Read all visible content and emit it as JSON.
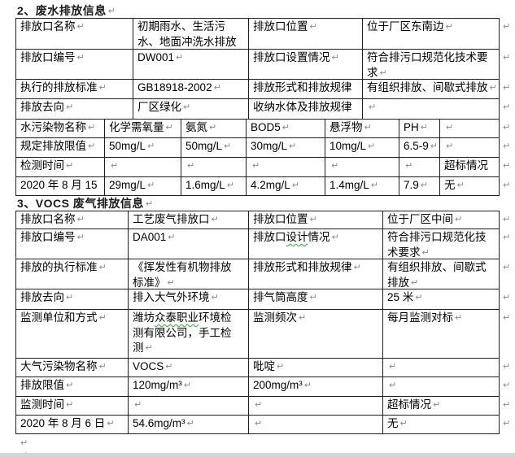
{
  "marks": {
    "cell_end": "↵"
  },
  "colors": {
    "border": "#1f1f1f",
    "squiggle": "#2fae2f",
    "mark": "#8a8a8a",
    "page_bg": "#ffffff"
  },
  "sections": [
    {
      "title": "2、废水排放信息",
      "rows": [
        [
          {
            "text": "排放口名称"
          },
          {
            "text": "初期雨水、生活污水、地面冲洗水排放口"
          },
          {
            "text": "排放口位置"
          },
          {
            "text": "位于厂区东南边"
          }
        ],
        [
          {
            "text": "排放口编号"
          },
          {
            "text": "DW001"
          },
          {
            "text": "排放口设置情况"
          },
          {
            "text": "符合排污口规范化技术要求"
          }
        ],
        [
          {
            "text": "执行的排放标准"
          },
          {
            "text": "GB18918-2002"
          },
          {
            "text": "排放形式和排放规律"
          },
          {
            "text": "有组织排放、间歇式排放"
          }
        ],
        [
          {
            "text": "排放去向"
          },
          {
            "text": "厂区绿化"
          },
          {
            "text": "收纳水体及排放规律"
          },
          {
            "text": ""
          }
        ],
        [
          {
            "text": "水污染物名称"
          },
          {
            "text": "化学需氧量"
          },
          {
            "text": "氨氮"
          },
          {
            "text": "BOD5"
          },
          {
            "text": "悬浮物"
          },
          {
            "text": "PH"
          },
          {
            "text": ""
          }
        ],
        [
          {
            "text": "规定排放限值"
          },
          {
            "text": "50mg/L"
          },
          {
            "text": "50mg/L"
          },
          {
            "text": "30mg/L"
          },
          {
            "text": "10mg/L"
          },
          {
            "text": "6.5-9"
          },
          {
            "text": ""
          }
        ],
        [
          {
            "text": "检测时间"
          },
          {
            "text": ""
          },
          {
            "text": ""
          },
          {
            "text": ""
          },
          {
            "text": ""
          },
          {
            "text": ""
          },
          {
            "text": "超标情况"
          }
        ],
        [
          {
            "text": "2020 年 8 月 15"
          },
          {
            "text": "29mg/L"
          },
          {
            "text": "1.6mg/L"
          },
          {
            "text": "4.2mg/L"
          },
          {
            "text": "1.4mg/L"
          },
          {
            "text": "7.9"
          },
          {
            "text": "无"
          }
        ]
      ]
    },
    {
      "title": "3、VOCS 废气排放信息",
      "rows": [
        [
          {
            "text": "排放口名称"
          },
          {
            "text": "工艺废气排放口"
          },
          {
            "text": "排放口位置"
          },
          {
            "text": "位于厂区中间"
          }
        ],
        [
          {
            "text": "排放口编号"
          },
          {
            "text": "DA001"
          },
          {
            "text": "排放口设计情况",
            "squiggle": "设计"
          },
          {
            "text": "符合排污口规范化技术要求"
          }
        ],
        [
          {
            "text": "排放的执行标准"
          },
          {
            "text": "《挥发性有机物排放标准》"
          },
          {
            "text": "排放形式和排放规律"
          },
          {
            "text": "有组织排放、间歇式排放"
          }
        ],
        [
          {
            "text": "排放去向"
          },
          {
            "text": "排入大气外环境"
          },
          {
            "text": "排气筒高度"
          },
          {
            "text": "25 米"
          }
        ],
        [
          {
            "text": "监测单位和方式"
          },
          {
            "text": "潍坊众泰职业环境检测有限公司，手工检测",
            "squiggle": "众泰职业"
          },
          {
            "text": "监测频次"
          },
          {
            "text": "每月监测对标"
          }
        ],
        [
          {
            "text": "大气污染物名称"
          },
          {
            "text": "VOCS"
          },
          {
            "text": "吡啶"
          },
          {
            "text": ""
          }
        ],
        [
          {
            "text": "排放限值"
          },
          {
            "text": "120mg/m³"
          },
          {
            "text": "200mg/m³"
          },
          {
            "text": ""
          }
        ],
        [
          {
            "text": "监测时间"
          },
          {
            "text": ""
          },
          {
            "text": ""
          },
          {
            "text": "超标情况"
          }
        ],
        [
          {
            "text": "2020 年 8 月 6 日"
          },
          {
            "text": "54.6mg/m³"
          },
          {
            "text": ""
          },
          {
            "text": "无"
          }
        ]
      ]
    }
  ],
  "trailing_paragraph_marks": 2
}
